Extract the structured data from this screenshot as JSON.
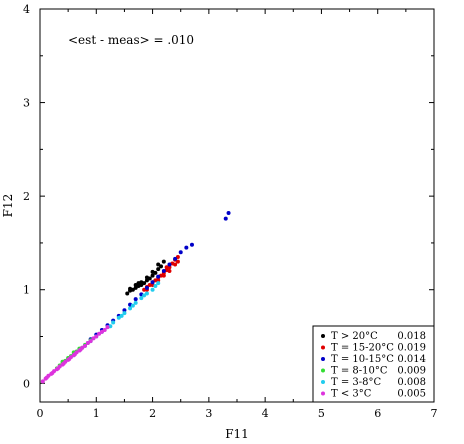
{
  "chart_data": {
    "type": "scatter",
    "xlabel": "F11",
    "ylabel": "F12",
    "xlim": [
      0,
      7
    ],
    "ylim": [
      -0.2,
      4
    ],
    "x_ticks": [
      0,
      1,
      2,
      3,
      4,
      5,
      6,
      7
    ],
    "y_ticks": [
      0,
      1,
      2,
      3,
      4
    ],
    "annotation": "<est - meas> = .010",
    "grid": false,
    "legend_position": "bottom-right",
    "series": [
      {
        "name": "T > 20°C",
        "value_label": "0.018",
        "color": "#000000",
        "points": [
          [
            1.55,
            0.96
          ],
          [
            1.6,
            0.99
          ],
          [
            1.65,
            1.0
          ],
          [
            1.7,
            1.02
          ],
          [
            1.75,
            1.04
          ],
          [
            1.8,
            1.05
          ],
          [
            1.85,
            1.07
          ],
          [
            1.9,
            1.1
          ],
          [
            1.95,
            1.12
          ],
          [
            2.0,
            1.15
          ],
          [
            2.05,
            1.18
          ],
          [
            2.1,
            1.22
          ],
          [
            2.15,
            1.25
          ],
          [
            1.6,
            1.01
          ],
          [
            1.7,
            1.05
          ],
          [
            1.8,
            1.08
          ],
          [
            1.9,
            1.13
          ],
          [
            2.0,
            1.19
          ],
          [
            2.1,
            1.27
          ],
          [
            1.75,
            1.07
          ],
          [
            2.2,
            1.3
          ]
        ]
      },
      {
        "name": "T = 15-20°C",
        "value_label": "0.019",
        "color": "#e00000",
        "points": [
          [
            1.85,
            1.0
          ],
          [
            1.9,
            1.03
          ],
          [
            1.95,
            1.05
          ],
          [
            2.0,
            1.08
          ],
          [
            2.05,
            1.1
          ],
          [
            2.1,
            1.13
          ],
          [
            2.15,
            1.15
          ],
          [
            2.2,
            1.18
          ],
          [
            2.25,
            1.21
          ],
          [
            2.3,
            1.24
          ],
          [
            2.35,
            1.28
          ],
          [
            2.4,
            1.32
          ],
          [
            2.45,
            1.35
          ],
          [
            2.0,
            1.05
          ],
          [
            2.1,
            1.1
          ],
          [
            2.2,
            1.15
          ],
          [
            2.3,
            1.2
          ],
          [
            2.4,
            1.27
          ],
          [
            2.45,
            1.3
          ],
          [
            1.9,
            1.0
          ],
          [
            2.25,
            1.24
          ]
        ]
      },
      {
        "name": "T = 10-15°C",
        "value_label": "0.014",
        "color": "#0000c8",
        "points": [
          [
            0.9,
            0.47
          ],
          [
            1.0,
            0.52
          ],
          [
            1.1,
            0.57
          ],
          [
            1.2,
            0.62
          ],
          [
            1.3,
            0.67
          ],
          [
            1.4,
            0.72
          ],
          [
            1.5,
            0.78
          ],
          [
            1.6,
            0.84
          ],
          [
            1.7,
            0.9
          ],
          [
            1.8,
            0.95
          ],
          [
            1.9,
            1.02
          ],
          [
            2.0,
            1.08
          ],
          [
            2.1,
            1.14
          ],
          [
            2.2,
            1.2
          ],
          [
            2.3,
            1.27
          ],
          [
            2.4,
            1.33
          ],
          [
            2.5,
            1.4
          ],
          [
            2.6,
            1.45
          ],
          [
            2.7,
            1.48
          ],
          [
            3.3,
            1.76
          ],
          [
            3.35,
            1.82
          ]
        ]
      },
      {
        "name": "T = 8-10°C",
        "value_label": "0.009",
        "color": "#33dd33",
        "points": [
          [
            0.3,
            0.16
          ],
          [
            0.35,
            0.19
          ],
          [
            0.4,
            0.21
          ],
          [
            0.45,
            0.24
          ],
          [
            0.5,
            0.26
          ],
          [
            0.55,
            0.29
          ],
          [
            0.6,
            0.31
          ],
          [
            0.65,
            0.34
          ],
          [
            0.7,
            0.36
          ],
          [
            0.75,
            0.38
          ],
          [
            0.8,
            0.41
          ],
          [
            0.85,
            0.43
          ],
          [
            0.9,
            0.46
          ],
          [
            0.4,
            0.23
          ],
          [
            0.5,
            0.27
          ],
          [
            0.6,
            0.33
          ],
          [
            0.7,
            0.37
          ]
        ]
      },
      {
        "name": "T = 3-8°C",
        "value_label": "0.008",
        "color": "#22ccee",
        "points": [
          [
            0.6,
            0.3
          ],
          [
            0.7,
            0.35
          ],
          [
            0.8,
            0.4
          ],
          [
            0.9,
            0.45
          ],
          [
            1.0,
            0.5
          ],
          [
            1.1,
            0.55
          ],
          [
            1.2,
            0.6
          ],
          [
            1.3,
            0.65
          ],
          [
            1.4,
            0.7
          ],
          [
            1.5,
            0.75
          ],
          [
            1.6,
            0.8
          ],
          [
            1.7,
            0.86
          ],
          [
            1.8,
            0.91
          ],
          [
            1.9,
            0.96
          ],
          [
            2.0,
            1.0
          ],
          [
            2.05,
            1.04
          ],
          [
            2.1,
            1.07
          ],
          [
            1.25,
            0.61
          ],
          [
            1.45,
            0.72
          ],
          [
            1.65,
            0.83
          ],
          [
            1.85,
            0.94
          ]
        ]
      },
      {
        "name": "T < 3°C",
        "value_label": "0.005",
        "color": "#dd33dd",
        "points": [
          [
            0.05,
            0.02
          ],
          [
            0.1,
            0.05
          ],
          [
            0.15,
            0.08
          ],
          [
            0.2,
            0.1
          ],
          [
            0.25,
            0.13
          ],
          [
            0.3,
            0.15
          ],
          [
            0.35,
            0.18
          ],
          [
            0.4,
            0.2
          ],
          [
            0.45,
            0.23
          ],
          [
            0.5,
            0.25
          ],
          [
            0.55,
            0.28
          ],
          [
            0.6,
            0.3
          ],
          [
            0.65,
            0.33
          ],
          [
            0.7,
            0.35
          ],
          [
            0.75,
            0.38
          ],
          [
            0.8,
            0.4
          ],
          [
            0.85,
            0.43
          ],
          [
            0.9,
            0.45
          ],
          [
            0.95,
            0.48
          ],
          [
            1.0,
            0.5
          ],
          [
            1.05,
            0.53
          ],
          [
            1.1,
            0.55
          ],
          [
            1.15,
            0.57
          ],
          [
            1.2,
            0.6
          ],
          [
            0.12,
            0.06
          ],
          [
            0.22,
            0.11
          ],
          [
            0.32,
            0.16
          ],
          [
            0.42,
            0.21
          ],
          [
            0.52,
            0.26
          ],
          [
            0.62,
            0.31
          ],
          [
            0.72,
            0.36
          ]
        ]
      }
    ]
  }
}
